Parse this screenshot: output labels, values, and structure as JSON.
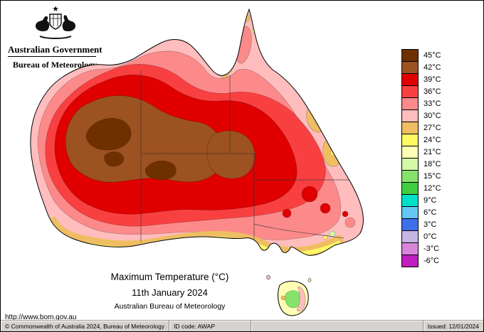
{
  "header": {
    "government_label": "Australian Government",
    "bureau_label": "Bureau of Meteorology"
  },
  "map": {
    "title": "Maximum Temperature (°C)",
    "date": "11th January 2024",
    "attribution": "Australian Bureau of Meteorology",
    "website": "http://www.bom.gov.au"
  },
  "legend": {
    "entries": [
      {
        "label": "45°C",
        "color": "#6F3000"
      },
      {
        "label": "42°C",
        "color": "#9D5221"
      },
      {
        "label": "39°C",
        "color": "#E00000"
      },
      {
        "label": "36°C",
        "color": "#F94040"
      },
      {
        "label": "33°C",
        "color": "#FC8A8A"
      },
      {
        "label": "30°C",
        "color": "#FFBDBD"
      },
      {
        "label": "27°C",
        "color": "#EFBE62"
      },
      {
        "label": "24°C",
        "color": "#FFF962"
      },
      {
        "label": "21°C",
        "color": "#FEFEB4"
      },
      {
        "label": "18°C",
        "color": "#D2F8A8"
      },
      {
        "label": "15°C",
        "color": "#86E26B"
      },
      {
        "label": "12°C",
        "color": "#3FCE3F"
      },
      {
        "label": "9°C",
        "color": "#00E0C8"
      },
      {
        "label": "6°C",
        "color": "#66C7F2"
      },
      {
        "label": "3°C",
        "color": "#3F6FE8"
      },
      {
        "label": "0°C",
        "color": "#C4B6E2"
      },
      {
        "label": "-3°C",
        "color": "#DA85DA"
      },
      {
        "label": "-6°C",
        "color": "#BF1FBF"
      }
    ]
  },
  "footer": {
    "copyright": "© Commonwealth of Australia 2024, Bureau of Meteorology",
    "id_code": "ID code: AWAP",
    "issued": "Issued: 12/01/2024"
  }
}
